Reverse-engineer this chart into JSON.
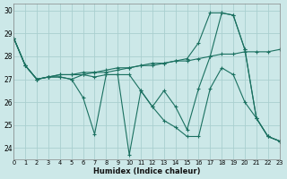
{
  "xlabel": "Humidex (Indice chaleur)",
  "background_color": "#cce8e8",
  "grid_color": "#aacfcf",
  "line_color": "#1a7060",
  "xlim": [
    0,
    23
  ],
  "ylim": [
    23.5,
    30.3
  ],
  "yticks": [
    24,
    25,
    26,
    27,
    28,
    29,
    30
  ],
  "xticks": [
    0,
    1,
    2,
    3,
    4,
    5,
    6,
    7,
    8,
    9,
    10,
    11,
    12,
    13,
    14,
    15,
    16,
    17,
    18,
    19,
    20,
    21,
    22,
    23
  ],
  "series": [
    [
      28.8,
      27.6,
      27.0,
      27.1,
      27.1,
      27.0,
      26.2,
      24.6,
      27.2,
      27.2,
      23.7,
      26.5,
      25.8,
      26.5,
      25.8,
      24.8,
      26.6,
      28.0,
      29.9,
      29.8,
      28.3,
      25.3,
      24.5,
      24.3
    ],
    [
      28.8,
      27.6,
      27.0,
      27.1,
      27.2,
      27.2,
      27.3,
      27.3,
      27.4,
      27.5,
      27.5,
      27.6,
      27.7,
      27.7,
      27.8,
      27.8,
      27.9,
      28.0,
      28.1,
      28.1,
      28.2,
      28.2,
      28.2,
      28.3
    ],
    [
      28.8,
      27.6,
      27.0,
      27.1,
      27.2,
      27.2,
      27.2,
      27.3,
      27.3,
      27.4,
      27.5,
      27.6,
      27.6,
      27.7,
      27.8,
      27.9,
      28.6,
      29.9,
      29.9,
      29.8,
      28.3,
      25.3,
      24.5,
      24.3
    ],
    [
      28.8,
      27.6,
      27.0,
      27.1,
      27.1,
      27.0,
      27.2,
      27.1,
      27.2,
      27.2,
      27.2,
      26.5,
      25.8,
      25.2,
      24.9,
      24.5,
      24.5,
      26.6,
      27.5,
      27.2,
      26.0,
      25.3,
      24.5,
      24.3
    ]
  ]
}
